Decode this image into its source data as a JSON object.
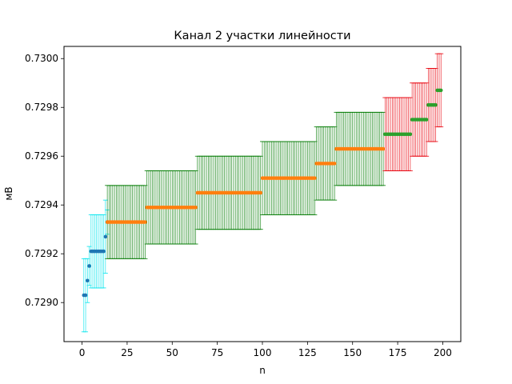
{
  "chart_data": {
    "type": "scatter",
    "title": "Канал 2 участки линейности",
    "xlabel": "n",
    "ylabel": "мВ",
    "xlim": [
      -10,
      210
    ],
    "ylim": [
      0.72884,
      0.73005
    ],
    "xticks": [
      0,
      25,
      50,
      75,
      100,
      125,
      150,
      175,
      200
    ],
    "yticks": [
      0.729,
      0.7292,
      0.7294,
      0.7296,
      0.7298,
      0.73
    ],
    "ytick_labels": [
      "0.7290",
      "0.7292",
      "0.7294",
      "0.7296",
      "0.7298",
      "0.7300"
    ],
    "grid": false,
    "colors": {
      "blue": "#1f77b4",
      "orange": "#ff7f0e",
      "green": "#2ca02c",
      "cyan": "#00e5ee",
      "dark_green": "#007a00",
      "red": "#e8000b"
    },
    "series": [
      {
        "marker_color": "#1f77b4",
        "errorbar_color": "#00e5ee",
        "segments": [
          {
            "x_start": 1,
            "x_end": 2,
            "y": 0.72903,
            "err": 0.00015
          },
          {
            "x_start": 3,
            "x_end": 3,
            "y": 0.72909,
            "err": 9e-05
          },
          {
            "x_start": 4,
            "x_end": 4,
            "y": 0.72915,
            "err": 8e-05
          },
          {
            "x_start": 5,
            "x_end": 12,
            "y": 0.72921,
            "err": 0.00015
          },
          {
            "x_start": 13,
            "x_end": 13,
            "y": 0.72927,
            "err": 0.00015
          },
          {
            "x_start": 14,
            "x_end": 14,
            "y": 0.72933,
            "err": 5e-05
          }
        ]
      },
      {
        "marker_color": "#ff7f0e",
        "errorbar_color": "#007a00",
        "segments": [
          {
            "x_start": 14,
            "x_end": 35,
            "y": 0.72933,
            "err": 0.00015
          },
          {
            "x_start": 36,
            "x_end": 63,
            "y": 0.72939,
            "err": 0.00015
          },
          {
            "x_start": 64,
            "x_end": 99,
            "y": 0.72945,
            "err": 0.00015
          },
          {
            "x_start": 100,
            "x_end": 129,
            "y": 0.72951,
            "err": 0.00015
          },
          {
            "x_start": 130,
            "x_end": 140,
            "y": 0.72957,
            "err": 0.00015
          },
          {
            "x_start": 141,
            "x_end": 167,
            "y": 0.72963,
            "err": 0.00015
          }
        ]
      },
      {
        "marker_color": "#2ca02c",
        "errorbar_color": "#e8000b",
        "segments": [
          {
            "x_start": 168,
            "x_end": 182,
            "y": 0.72969,
            "err": 0.00015
          },
          {
            "x_start": 183,
            "x_end": 191,
            "y": 0.72975,
            "err": 0.00015
          },
          {
            "x_start": 192,
            "x_end": 196,
            "y": 0.72981,
            "err": 0.00015
          },
          {
            "x_start": 197,
            "x_end": 199,
            "y": 0.72987,
            "err": 0.00015
          }
        ]
      }
    ]
  }
}
